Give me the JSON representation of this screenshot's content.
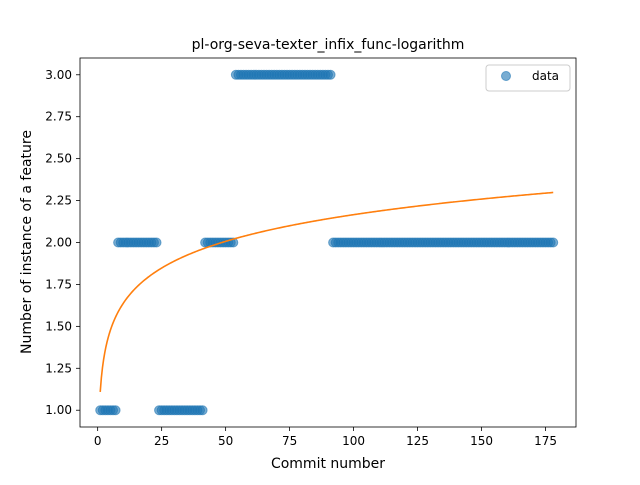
{
  "chart_data": {
    "type": "scatter",
    "title": "pl-org-seva-texter_infix_func-logarithm",
    "xlabel": "Commit number",
    "ylabel": "Number of instance of a feature",
    "xlim": [
      -6.9,
      186.9
    ],
    "ylim": [
      0.9,
      3.1
    ],
    "xticks": [
      0,
      25,
      50,
      75,
      100,
      125,
      150,
      175
    ],
    "xtick_labels": [
      "0",
      "25",
      "50",
      "75",
      "100",
      "125",
      "150",
      "175"
    ],
    "yticks": [
      1.0,
      1.25,
      1.5,
      1.75,
      2.0,
      2.25,
      2.5,
      2.75,
      3.0
    ],
    "ytick_labels": [
      "1.00",
      "1.25",
      "1.50",
      "1.75",
      "2.00",
      "2.25",
      "2.50",
      "2.75",
      "3.00"
    ],
    "grid": false,
    "legend": {
      "position": "top-right",
      "entries": [
        "data"
      ]
    },
    "series": [
      {
        "name": "data",
        "kind": "scatter",
        "color": "#1f77b4",
        "alpha": 0.6,
        "segments": [
          {
            "x_start": 1,
            "x_end": 7,
            "y": 1
          },
          {
            "x_start": 8,
            "x_end": 23,
            "y": 2
          },
          {
            "x_start": 24,
            "x_end": 41,
            "y": 1
          },
          {
            "x_start": 42,
            "x_end": 53,
            "y": 2
          },
          {
            "x_start": 54,
            "x_end": 91,
            "y": 3
          },
          {
            "x_start": 92,
            "x_end": 178,
            "y": 2
          }
        ]
      },
      {
        "kind": "line",
        "color": "#ff7f0e",
        "fit": "logarithmic",
        "a": 1.109,
        "b": 0.2295,
        "x_range": [
          1,
          178
        ]
      }
    ]
  }
}
